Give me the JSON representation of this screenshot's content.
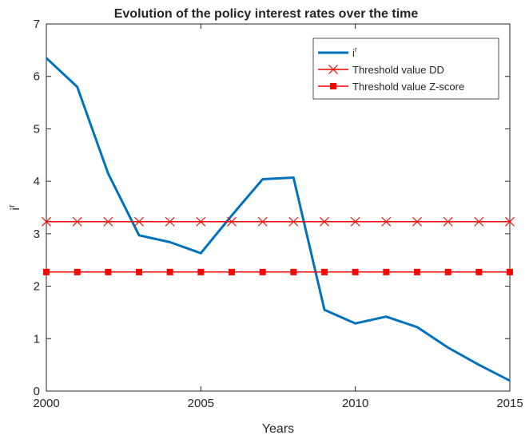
{
  "chart_data": {
    "type": "line",
    "title": "Evolution of the policy interest rates over the time",
    "xlabel": "Years",
    "ylabel": "i",
    "ylabel_sup": "r",
    "xlim": [
      2000,
      2015
    ],
    "ylim": [
      0,
      7
    ],
    "x_ticks": [
      2000,
      2005,
      2010,
      2015
    ],
    "y_ticks": [
      0,
      1,
      2,
      3,
      4,
      5,
      6,
      7
    ],
    "grid": false,
    "legend_position": "top-right",
    "x": [
      2000,
      2001,
      2002,
      2003,
      2004,
      2005,
      2006,
      2007,
      2008,
      2009,
      2010,
      2011,
      2012,
      2013,
      2014,
      2015
    ],
    "series": [
      {
        "name": "i",
        "name_sup": "r",
        "color": "#0072bd",
        "marker": "none",
        "values": [
          6.35,
          5.8,
          4.15,
          2.97,
          2.84,
          2.63,
          3.35,
          4.04,
          4.07,
          1.55,
          1.29,
          1.42,
          1.22,
          0.83,
          0.5,
          0.2
        ]
      },
      {
        "name": "Threshold value DD",
        "color": "#ff0000",
        "marker": "x",
        "values": [
          3.23,
          3.23,
          3.23,
          3.23,
          3.23,
          3.23,
          3.23,
          3.23,
          3.23,
          3.23,
          3.23,
          3.23,
          3.23,
          3.23,
          3.23,
          3.23
        ]
      },
      {
        "name": "Threshold value Z-score",
        "color": "#ff0000",
        "marker": "square",
        "values": [
          2.27,
          2.27,
          2.27,
          2.27,
          2.27,
          2.27,
          2.27,
          2.27,
          2.27,
          2.27,
          2.27,
          2.27,
          2.27,
          2.27,
          2.27,
          2.27
        ]
      }
    ]
  }
}
